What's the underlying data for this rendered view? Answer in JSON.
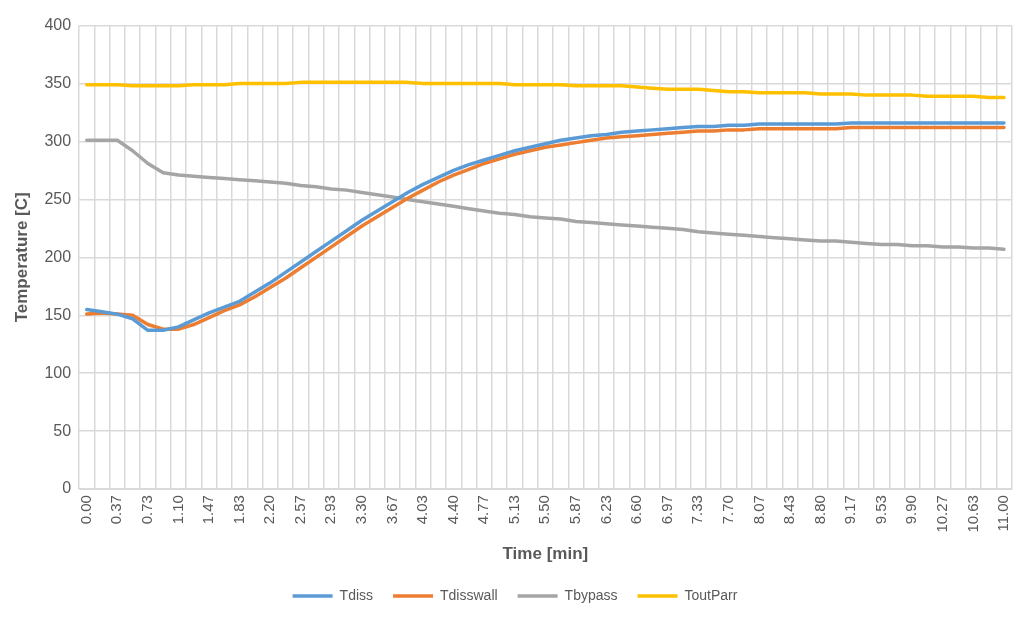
{
  "chart_data": {
    "type": "line",
    "xlabel": "Time [min]",
    "ylabel": "Temperature [C]",
    "categories": [
      "0.00",
      null,
      "0.37",
      null,
      "0.73",
      null,
      "1.10",
      null,
      "1.47",
      null,
      "1.83",
      null,
      "2.20",
      null,
      "2.57",
      null,
      "2.93",
      null,
      "3.30",
      null,
      "3.67",
      null,
      "4.03",
      null,
      "4.40",
      null,
      "4.77",
      null,
      "5.13",
      null,
      "5.50",
      null,
      "5.87",
      null,
      "6.23",
      null,
      "6.60",
      null,
      "6.97",
      null,
      "7.33",
      null,
      "7.70",
      null,
      "8.07",
      null,
      "8.43",
      null,
      "8.80",
      null,
      "9.17",
      null,
      "9.53",
      null,
      "9.90",
      null,
      "10.27",
      null,
      "10.63",
      null,
      "11.00"
    ],
    "ylim": [
      0,
      400
    ],
    "yticks": [
      0,
      50,
      100,
      150,
      200,
      250,
      300,
      350,
      400
    ],
    "grid": true,
    "legend": "bottom",
    "line_style": "solid",
    "marker": "none",
    "series": [
      {
        "name": "Tdiss",
        "color": "#5b9bd5",
        "values": [
          155,
          153,
          151,
          147,
          137,
          137,
          140,
          146,
          152,
          157,
          162,
          170,
          178,
          187,
          196,
          205,
          214,
          223,
          232,
          240,
          248,
          256,
          263,
          269,
          275,
          280,
          284,
          288,
          292,
          295,
          298,
          301,
          303,
          305,
          306,
          308,
          309,
          310,
          311,
          312,
          313,
          313,
          314,
          314,
          315,
          315,
          315,
          315,
          315,
          315,
          316,
          316,
          316,
          316,
          316,
          316,
          316,
          316,
          316,
          316,
          316
        ]
      },
      {
        "name": "Tdisswall",
        "color": "#ed7d31",
        "values": [
          151,
          152,
          151,
          150,
          142,
          138,
          138,
          142,
          148,
          154,
          159,
          166,
          174,
          182,
          191,
          200,
          209,
          218,
          227,
          235,
          243,
          251,
          258,
          265,
          271,
          276,
          281,
          285,
          289,
          292,
          295,
          297,
          299,
          301,
          303,
          304,
          305,
          306,
          307,
          308,
          309,
          309,
          310,
          310,
          311,
          311,
          311,
          311,
          311,
          311,
          312,
          312,
          312,
          312,
          312,
          312,
          312,
          312,
          312,
          312,
          312
        ]
      },
      {
        "name": "Tbypass",
        "color": "#a5a5a5",
        "values": [
          301,
          301,
          301,
          292,
          281,
          273,
          271,
          270,
          269,
          268,
          267,
          266,
          265,
          264,
          262,
          261,
          259,
          258,
          256,
          254,
          252,
          250,
          248,
          246,
          244,
          242,
          240,
          238,
          237,
          235,
          234,
          233,
          231,
          230,
          229,
          228,
          227,
          226,
          225,
          224,
          222,
          221,
          220,
          219,
          218,
          217,
          216,
          215,
          214,
          214,
          213,
          212,
          211,
          211,
          210,
          210,
          209,
          209,
          208,
          208,
          207
        ]
      },
      {
        "name": "ToutParr",
        "color": "#ffc000",
        "values": [
          349,
          349,
          349,
          348,
          348,
          348,
          348,
          349,
          349,
          349,
          350,
          350,
          350,
          350,
          351,
          351,
          351,
          351,
          351,
          351,
          351,
          351,
          350,
          350,
          350,
          350,
          350,
          350,
          349,
          349,
          349,
          349,
          348,
          348,
          348,
          348,
          347,
          346,
          345,
          345,
          345,
          344,
          343,
          343,
          342,
          342,
          342,
          342,
          341,
          341,
          341,
          340,
          340,
          340,
          340,
          339,
          339,
          339,
          339,
          338,
          338
        ]
      }
    ]
  }
}
